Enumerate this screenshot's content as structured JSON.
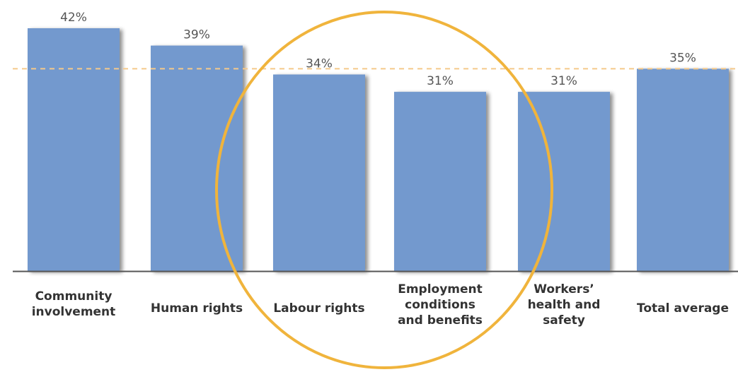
{
  "chart_data": {
    "type": "bar",
    "categories": [
      [
        "Community",
        "involvement"
      ],
      [
        "Human rights"
      ],
      [
        "Labour rights"
      ],
      [
        "Employment",
        "conditions",
        "and benefits"
      ],
      [
        "Workers’",
        "health and",
        "safety"
      ],
      [
        "Total average"
      ]
    ],
    "values": [
      42,
      39,
      34,
      31,
      31,
      35
    ],
    "data_labels": [
      "42%",
      "39%",
      "34%",
      "31%",
      "31%",
      "35%"
    ],
    "reference_line": {
      "value": 35,
      "style": "dashed"
    },
    "highlight": {
      "type": "circle",
      "covers": [
        "Labour rights",
        "Employment conditions and benefits",
        "Workers’ health and safety"
      ]
    },
    "ylim": [
      0,
      42
    ],
    "grid": false,
    "legend": "none"
  },
  "colors": {
    "bar": "#7399ce",
    "bar_shadow": "#8a8a8a",
    "baseline": "#555555",
    "reference_line": "#f5c98a",
    "highlight_circle": "#f0b43c",
    "value_text": "#555555",
    "category_text": "#333333"
  }
}
